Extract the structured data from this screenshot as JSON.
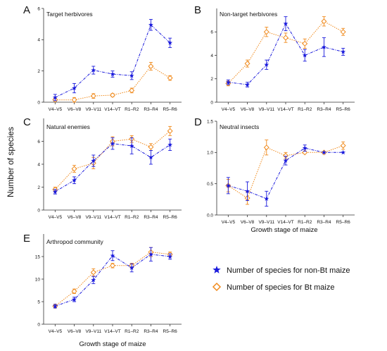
{
  "figure": {
    "ylabel": "Number of species",
    "legend": {
      "placement": "bottom-right",
      "entries": [
        {
          "label": "Number of species for non-Bt maize",
          "marker": "star",
          "color": "#1a1adc"
        },
        {
          "label": "Number of species for Bt maize",
          "marker": "diamond",
          "color": "#f08a1c"
        }
      ]
    }
  },
  "chart_data": [
    {
      "type": "line",
      "letter": "A",
      "title": "Target herbivores",
      "categories": [
        "V4–V5",
        "V6–V8",
        "V9–V11",
        "V14–VT",
        "R1–R2",
        "R3–R4",
        "R5–R6"
      ],
      "xlabel": "",
      "ylim": [
        0,
        6
      ],
      "yticks": [
        0,
        2,
        4,
        6
      ],
      "ytick_labels": [
        "0",
        "2",
        "4",
        "6"
      ],
      "series": [
        {
          "name": "Number of species for non-Bt maize",
          "values": [
            0.3,
            0.9,
            2.05,
            1.8,
            1.7,
            4.95,
            3.8
          ],
          "errors": [
            0.2,
            0.3,
            0.25,
            0.2,
            0.25,
            0.35,
            0.3
          ]
        },
        {
          "name": "Number of species for Bt maize",
          "values": [
            0.15,
            0.15,
            0.4,
            0.45,
            0.75,
            2.3,
            1.55
          ],
          "errors": [
            0.1,
            0.15,
            0.15,
            0.1,
            0.15,
            0.25,
            0.15
          ]
        }
      ]
    },
    {
      "type": "line",
      "letter": "B",
      "title": "Non-target herbivores",
      "categories": [
        "V4–V5",
        "V6–V8",
        "V9–V11",
        "V14–VT",
        "R1–R2",
        "R3–R4",
        "R5–R6"
      ],
      "xlabel": "",
      "ylim": [
        0,
        8
      ],
      "yticks": [
        0,
        2,
        4,
        6
      ],
      "ytick_labels": [
        "0",
        "2",
        "4",
        "6"
      ],
      "series": [
        {
          "name": "Number of species for non-Bt maize",
          "values": [
            1.7,
            1.5,
            3.2,
            6.7,
            4.0,
            4.7,
            4.3
          ],
          "errors": [
            0.2,
            0.2,
            0.4,
            0.6,
            0.5,
            0.8,
            0.3
          ]
        },
        {
          "name": "Number of species for Bt maize",
          "values": [
            1.6,
            3.3,
            6.0,
            5.5,
            5.0,
            6.9,
            6.0
          ],
          "errors": [
            0.2,
            0.3,
            0.4,
            0.4,
            0.4,
            0.4,
            0.3
          ]
        }
      ]
    },
    {
      "type": "line",
      "letter": "C",
      "title": "Natural enemies",
      "categories": [
        "V4–V5",
        "V6–V8",
        "V9–V11",
        "V14–VT",
        "R1–R2",
        "R3–R4",
        "R5–R6"
      ],
      "xlabel": "",
      "ylim": [
        0,
        8
      ],
      "yticks": [
        0,
        2,
        4,
        6
      ],
      "ytick_labels": [
        "0",
        "2",
        "4",
        "6"
      ],
      "series": [
        {
          "name": "Number of species for non-Bt maize",
          "values": [
            1.6,
            2.6,
            4.3,
            5.8,
            5.6,
            4.6,
            5.7
          ],
          "errors": [
            0.2,
            0.3,
            0.5,
            0.5,
            0.7,
            0.6,
            0.5
          ]
        },
        {
          "name": "Number of species for Bt maize",
          "values": [
            1.8,
            3.6,
            4.1,
            6.0,
            6.2,
            5.5,
            6.9
          ],
          "errors": [
            0.2,
            0.3,
            0.5,
            0.4,
            0.3,
            0.3,
            0.4
          ]
        }
      ]
    },
    {
      "type": "line",
      "letter": "D",
      "title": "Neutral insects",
      "categories": [
        "V4–V5",
        "V6–V8",
        "V9–V11",
        "V14–VT",
        "R1–R2",
        "R3–R4",
        "R5–R6"
      ],
      "xlabel": "Growth stage of maize",
      "ylim": [
        0,
        1.5
      ],
      "yticks": [
        0,
        0.5,
        1.0,
        1.5
      ],
      "ytick_labels": [
        "0.0",
        "0.5",
        "1.0",
        "1.5"
      ],
      "series": [
        {
          "name": "Number of species for non-Bt maize",
          "values": [
            0.47,
            0.38,
            0.26,
            0.87,
            1.07,
            1.0,
            1.0
          ],
          "errors": [
            0.13,
            0.15,
            0.12,
            0.07,
            0.05,
            0.0,
            0.0
          ]
        },
        {
          "name": "Number of species for Bt maize",
          "values": [
            0.47,
            0.27,
            1.08,
            0.95,
            1.0,
            1.0,
            1.11
          ],
          "errors": [
            0.1,
            0.1,
            0.12,
            0.05,
            0.0,
            0.0,
            0.06
          ]
        }
      ]
    },
    {
      "type": "line",
      "letter": "E",
      "title": "Arthropod community",
      "categories": [
        "V4–V5",
        "V6–V8",
        "V9–V11",
        "V14–VT",
        "R1–R2",
        "R3–R4",
        "R5–R6"
      ],
      "xlabel": "Growth stage of maize",
      "ylim": [
        0,
        20
      ],
      "yticks": [
        0,
        5,
        10,
        15
      ],
      "ytick_labels": [
        "0",
        "5",
        "10",
        "15"
      ],
      "series": [
        {
          "name": "Number of species for non-Bt maize",
          "values": [
            4.0,
            5.5,
            9.8,
            15.2,
            12.5,
            15.5,
            15.0
          ],
          "errors": [
            0.4,
            0.5,
            0.8,
            1.1,
            0.9,
            1.5,
            0.6
          ]
        },
        {
          "name": "Number of species for Bt maize",
          "values": [
            4.0,
            7.3,
            11.5,
            13.0,
            13.0,
            16.0,
            15.5
          ],
          "errors": [
            0.4,
            0.5,
            0.8,
            0.5,
            0.5,
            1.0,
            0.5
          ]
        }
      ]
    }
  ]
}
